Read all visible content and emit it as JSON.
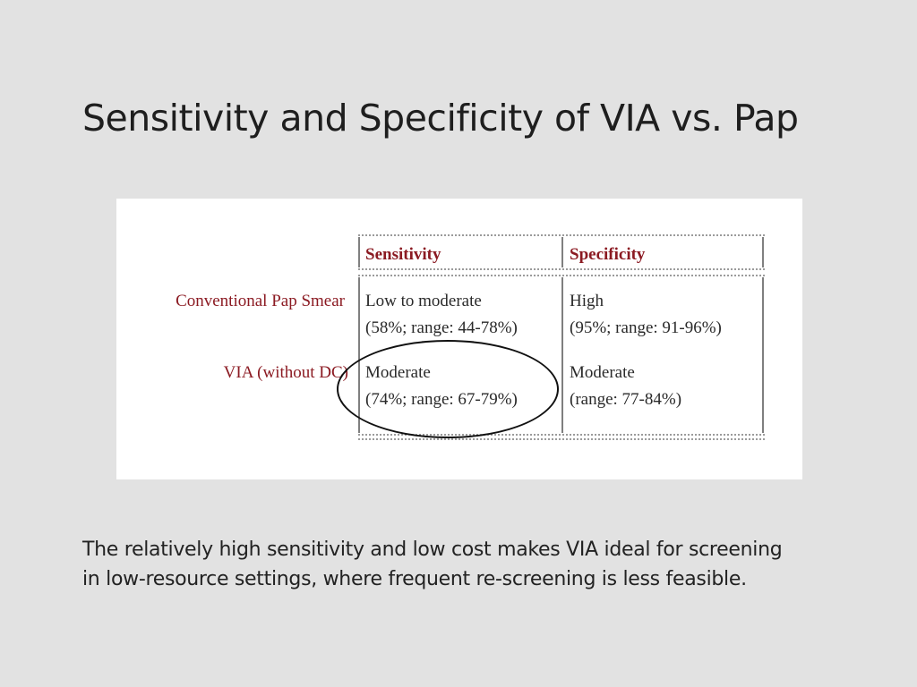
{
  "slide": {
    "title": "Sensitivity and Specificity of VIA vs. Pap",
    "caption_line1": "The relatively high sensitivity and low cost makes VIA ideal for screening",
    "caption_line2": "in low-resource settings, where frequent re-screening is less feasible."
  },
  "table": {
    "headers": [
      "Sensitivity",
      "Specificity"
    ],
    "rows": [
      {
        "label": "Conventional Pap Smear",
        "sensitivity": [
          "Low to moderate",
          "(58%; range: 44-78%)"
        ],
        "specificity": [
          "High",
          "(95%; range: 91-96%)"
        ]
      },
      {
        "label": "VIA (without DC)",
        "sensitivity": [
          "Moderate",
          "(74%; range: 67-79%)"
        ],
        "specificity": [
          "Moderate",
          "(range: 77-84%)"
        ]
      }
    ]
  },
  "colors": {
    "background": "#e2e2e2",
    "header_text": "#8b1a22",
    "highlight_circle": "#111111"
  }
}
